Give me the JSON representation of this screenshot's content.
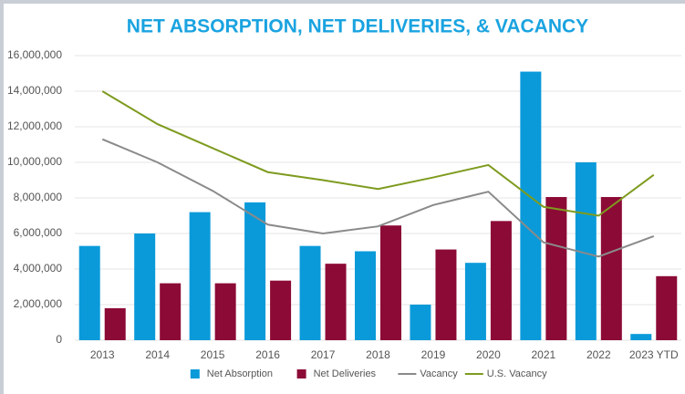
{
  "chart_data": {
    "type": "bar",
    "title": "NET ABSORPTION, NET DELIVERIES, & VACANCY",
    "categories": [
      "2013",
      "2014",
      "2015",
      "2016",
      "2017",
      "2018",
      "2019",
      "2020",
      "2021",
      "2022",
      "2023 YTD"
    ],
    "series": [
      {
        "name": "Net Absorption",
        "type": "bar",
        "color": "#0a9ad9",
        "values": [
          5300000,
          6000000,
          7200000,
          7750000,
          5300000,
          5000000,
          2000000,
          4350000,
          15100000,
          10000000,
          350000
        ]
      },
      {
        "name": "Net Deliveries",
        "type": "bar",
        "color": "#8c0a36",
        "values": [
          1800000,
          3200000,
          3200000,
          3350000,
          4300000,
          6450000,
          5100000,
          6700000,
          8050000,
          8050000,
          3600000
        ]
      },
      {
        "name": "Vacancy",
        "type": "line",
        "color": "#8a8a8a",
        "values": [
          11300000,
          10000000,
          8400000,
          6500000,
          6000000,
          6400000,
          7600000,
          8350000,
          5500000,
          4700000,
          5850000
        ]
      },
      {
        "name": "U.S. Vacancy",
        "type": "line",
        "color": "#7e9b1f",
        "values": [
          14000000,
          12150000,
          10800000,
          9450000,
          9000000,
          8500000,
          9150000,
          9850000,
          7500000,
          7000000,
          9300000
        ]
      }
    ],
    "ylim": [
      0,
      16000000
    ],
    "yticks": [
      0,
      {
        "value": 2000000,
        "label": "2,000,000"
      },
      {
        "value": 4000000,
        "label": "4,000,000"
      },
      {
        "value": 6000000,
        "label": "6,000,000"
      },
      {
        "value": 8000000,
        "label": "8,000,000"
      },
      {
        "value": 10000000,
        "label": "10,000,000"
      },
      {
        "value": 12000000,
        "label": "12,000,000"
      },
      {
        "value": 14000000,
        "label": "14,000,000"
      },
      {
        "value": 16000000,
        "label": "16,000,000"
      }
    ],
    "grid": true,
    "legend": "bottom"
  }
}
